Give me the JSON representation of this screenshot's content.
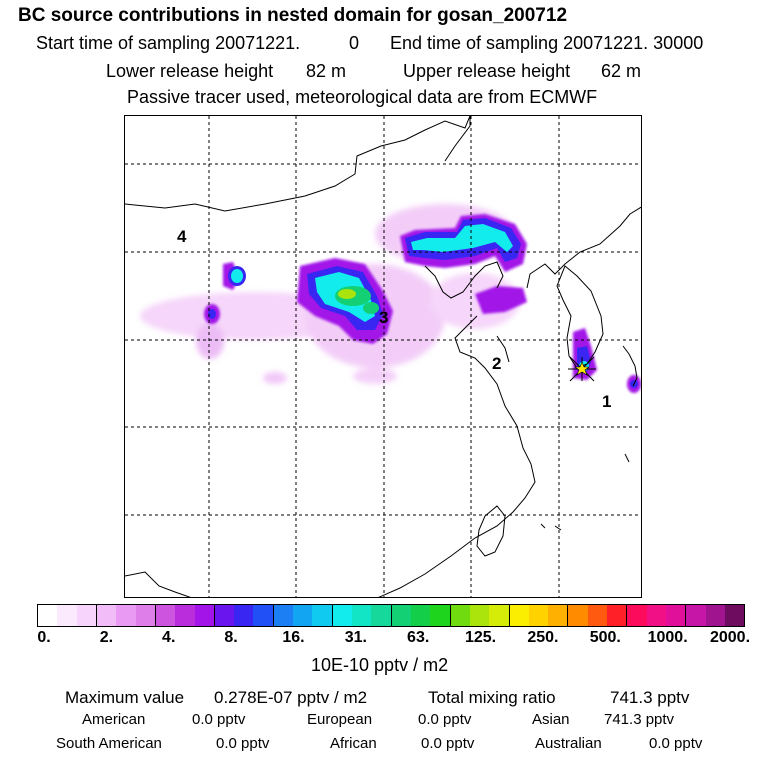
{
  "header": {
    "title": "BC  source contributions in nested domain for gosan_200712",
    "start_label": "Start time of sampling 20071221.",
    "start_value": "0",
    "end_label": "End time of sampling 20071221. 30000",
    "lower_label": "Lower release height",
    "lower_value": "82 m",
    "upper_label": "Upper release height",
    "upper_value": "62 m",
    "tracer_note": "Passive tracer used, meteorological data are from ECMWF"
  },
  "map": {
    "region_labels": [
      "1",
      "2",
      "3",
      "4"
    ],
    "receptor_marker": "station-star",
    "colors": {
      "land_outline": "#000000",
      "grid": "#000000",
      "receptor": "#ffe800"
    }
  },
  "colorbar": {
    "colors": [
      "#ffffff",
      "#fbe9fd",
      "#f7d4fb",
      "#f2bcf8",
      "#e99af2",
      "#dd7ee9",
      "#cc54df",
      "#b92ddd",
      "#a214e8",
      "#6a14ee",
      "#3a26f2",
      "#2050f6",
      "#1c80f4",
      "#12a6f2",
      "#10caf0",
      "#12ecec",
      "#12e4c6",
      "#16d89a",
      "#14d074",
      "#12ce48",
      "#1ed41c",
      "#70dc10",
      "#aae40c",
      "#d4ec08",
      "#fcee00",
      "#ffd200",
      "#ffb000",
      "#ff8c00",
      "#ff5a10",
      "#ff2028",
      "#fc0a5c",
      "#f21086",
      "#e0109a",
      "#c616a8",
      "#a01490",
      "#6e0c60"
    ],
    "ticks": [
      "0.",
      "2.",
      "4.",
      "8.",
      "16.",
      "31.",
      "63.",
      "125.",
      "250.",
      "500.",
      "1000.",
      "2000."
    ],
    "unit": "10E-10 pptv / m2"
  },
  "summary": {
    "max_label": "Maximum value",
    "max_value": "0.278E-07 pptv / m2",
    "total_label": "Total mixing ratio",
    "total_value": "741.3 pptv",
    "regions": [
      {
        "name": "American",
        "value": "0.0 pptv"
      },
      {
        "name": "European",
        "value": "0.0 pptv"
      },
      {
        "name": "Asian",
        "value": "741.3 pptv"
      },
      {
        "name": "South American",
        "value": "0.0 pptv"
      },
      {
        "name": "African",
        "value": "0.0 pptv"
      },
      {
        "name": "Australian",
        "value": "0.0 pptv"
      }
    ]
  }
}
